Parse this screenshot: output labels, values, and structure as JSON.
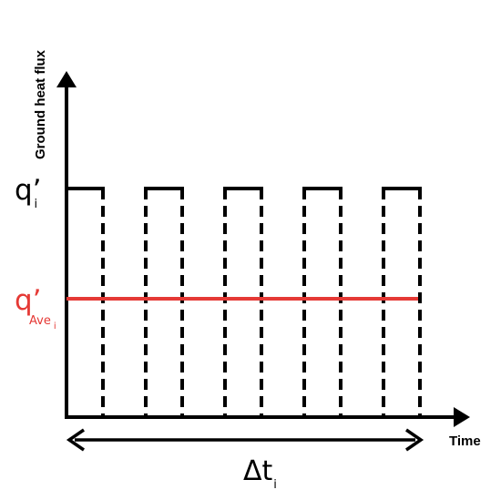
{
  "diagram": {
    "y_axis_label": "Ground heat flux",
    "x_axis_label": "Time",
    "peak_label": {
      "main": "q’",
      "subscript": "i"
    },
    "average_label": {
      "main": "q’",
      "subscript": "Ave",
      "sub_subscript": "i",
      "color": "#e53935"
    },
    "interval_label": {
      "main": "Δt",
      "subscript": "i"
    },
    "pulse_count": 5,
    "colors": {
      "line": "#000000",
      "average": "#e53935",
      "background": "#ffffff"
    }
  }
}
